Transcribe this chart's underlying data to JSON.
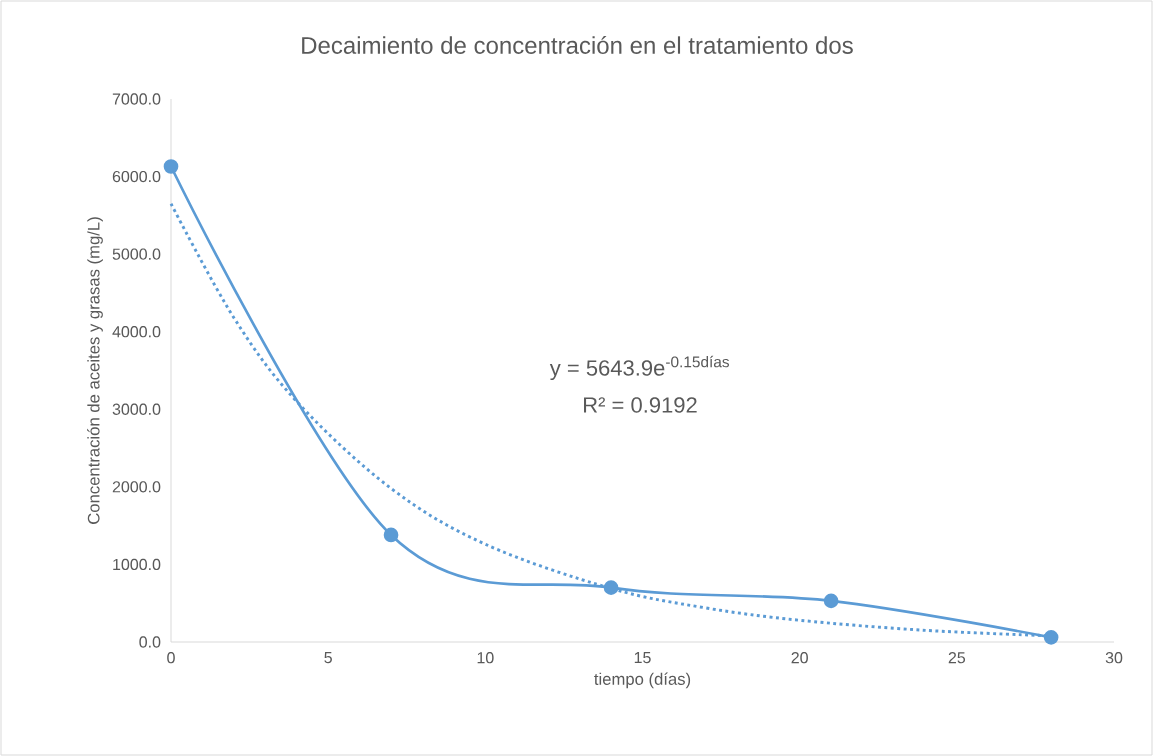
{
  "chart_data": {
    "type": "line",
    "title": "Decaimiento de concentración en el tratamiento dos",
    "xlabel": "tiempo (días)",
    "ylabel": "Concentración de aceites y grasas (mg/L)",
    "xlim": [
      0,
      30
    ],
    "xticks": [
      0,
      5,
      10,
      15,
      20,
      25,
      30
    ],
    "ylim": [
      0,
      7000
    ],
    "yticks": [
      {
        "value": 0,
        "label": "0.0"
      },
      {
        "value": 1000,
        "label": "1000.0"
      },
      {
        "value": 2000,
        "label": "2000.0"
      },
      {
        "value": 3000,
        "label": "3000.0"
      },
      {
        "value": 4000,
        "label": "4000.0"
      },
      {
        "value": 5000,
        "label": "5000.0"
      },
      {
        "value": 6000,
        "label": "6000.0"
      },
      {
        "value": 7000,
        "label": "7000.0"
      }
    ],
    "series": [
      {
        "color": "#5b9bd5",
        "marker": "circle",
        "line_style": "solid",
        "x": [
          0,
          7,
          14,
          21,
          28
        ],
        "values": [
          6130,
          1380,
          700,
          530,
          60
        ]
      },
      {
        "color": "#5b9bd5",
        "marker": "none",
        "line_style": "dotted",
        "x": [
          0,
          2,
          4,
          7,
          10,
          14,
          17,
          20,
          24,
          28
        ],
        "values": [
          5650,
          4180,
          3100,
          1980,
          1260,
          690,
          440,
          280,
          150,
          80
        ]
      }
    ],
    "annotations": [
      "y = 5643.9e$^{-0.15días}$",
      "R² = 0.9192"
    ],
    "grid": false
  }
}
